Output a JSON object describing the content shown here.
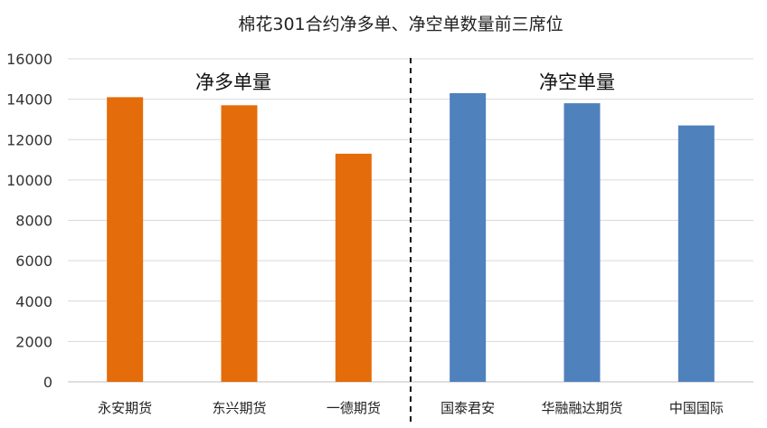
{
  "chart_data": {
    "type": "bar",
    "title": "棉花301合约净多单、净空单数量前三席位",
    "xlabel": "",
    "ylabel": "",
    "ylim": [
      0,
      16000
    ],
    "yticks": [
      "0",
      "2000",
      "4000",
      "6000",
      "8000",
      "10000",
      "12000",
      "14000",
      "16000"
    ],
    "grid": true,
    "legend": "none",
    "categories": [
      "永安期货",
      "东兴期货",
      "一德期货",
      "国泰君安",
      "华融融达期货",
      "中国国际"
    ],
    "values": [
      14100,
      13700,
      11300,
      14300,
      13800,
      12700
    ],
    "colors": [
      "#E46C0A",
      "#E46C0A",
      "#E46C0A",
      "#4F81BD",
      "#4F81BD",
      "#4F81BD"
    ],
    "annotations": [
      "净多单量",
      "净空单量"
    ],
    "divider": "dashed line between 一德期货 and 国泰君安"
  }
}
